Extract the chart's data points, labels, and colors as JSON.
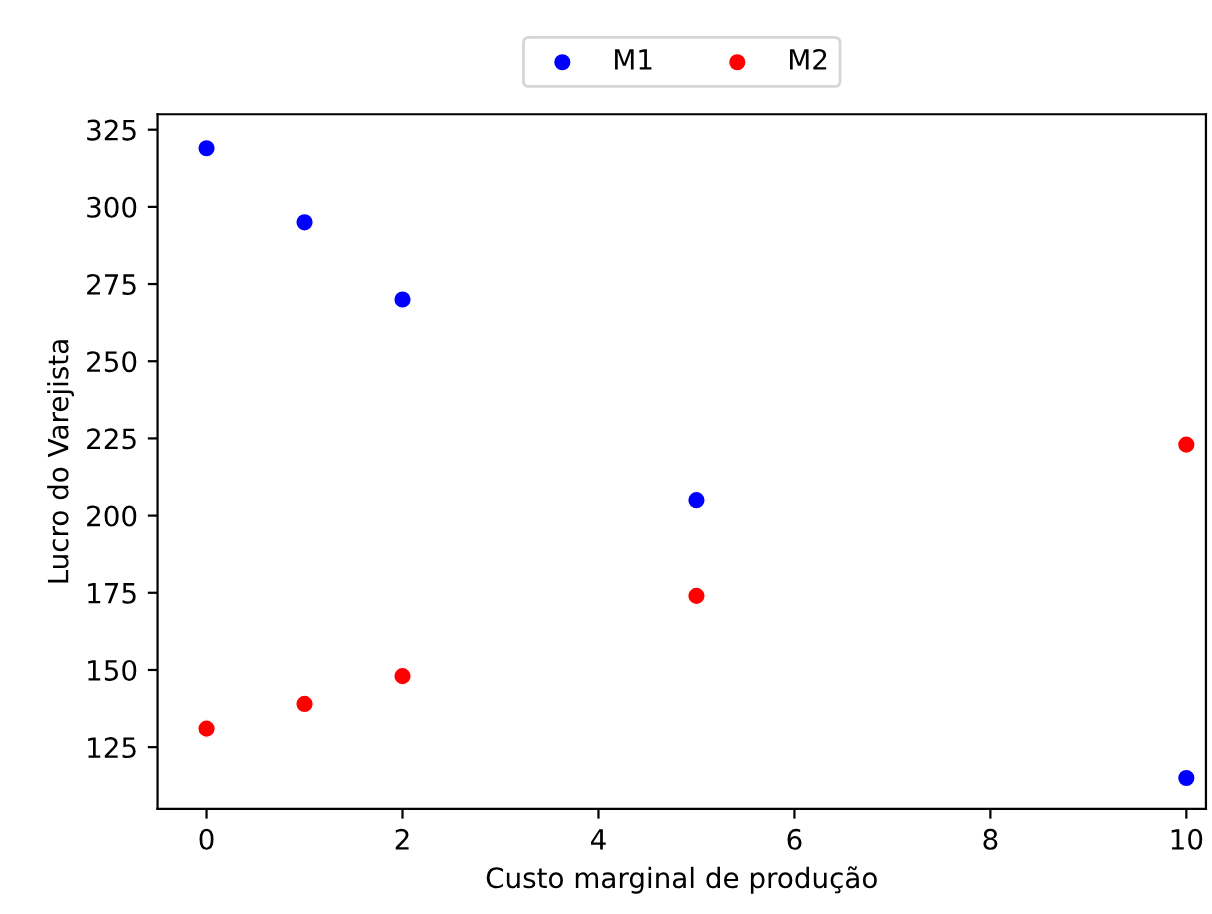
{
  "chart_data": {
    "type": "scatter",
    "xlabel": "Custo marginal de produção",
    "ylabel": "Lucro do Varejista",
    "x": [
      0,
      1,
      2,
      5,
      10
    ],
    "series": [
      {
        "name": "M1",
        "color": "#0000ff",
        "values": [
          319,
          295,
          270,
          205,
          115
        ]
      },
      {
        "name": "M2",
        "color": "#ff0000",
        "values": [
          131,
          139,
          148,
          174,
          223
        ]
      }
    ],
    "xlim": [
      -0.5,
      10.2
    ],
    "ylim": [
      105,
      330
    ],
    "xticks": [
      0,
      2,
      4,
      6,
      8,
      10
    ],
    "yticks": [
      125,
      150,
      175,
      200,
      225,
      250,
      275,
      300,
      325
    ],
    "marker": "circle",
    "grid": false,
    "legend": "top"
  }
}
